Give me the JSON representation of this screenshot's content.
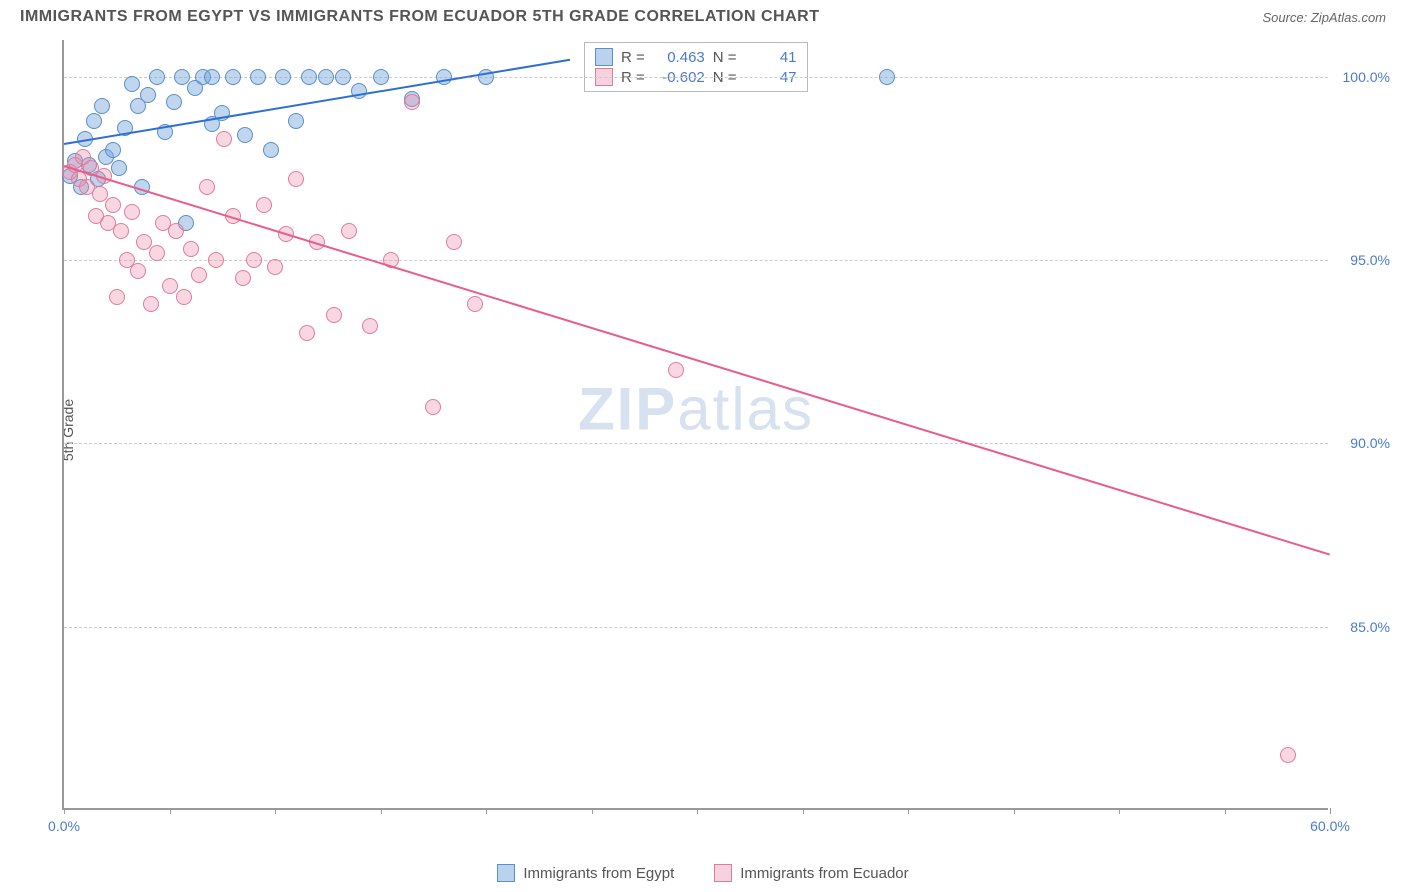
{
  "header": {
    "title": "IMMIGRANTS FROM EGYPT VS IMMIGRANTS FROM ECUADOR 5TH GRADE CORRELATION CHART",
    "source": "Source: ZipAtlas.com"
  },
  "y_axis_label": "5th Grade",
  "watermark_bold": "ZIP",
  "watermark_thin": "atlas",
  "chart": {
    "type": "scatter",
    "xlim": [
      0,
      60
    ],
    "ylim": [
      80,
      101
    ],
    "x_ticks": [
      0,
      5,
      10,
      15,
      20,
      25,
      30,
      35,
      40,
      45,
      50,
      55,
      60
    ],
    "x_tick_labels": {
      "0": "0.0%",
      "60": "60.0%"
    },
    "y_ticks": [
      85,
      90,
      95,
      100
    ],
    "y_tick_labels": [
      "85.0%",
      "90.0%",
      "95.0%",
      "100.0%"
    ],
    "grid_color": "#cccccc",
    "background_color": "#ffffff",
    "axis_color": "#999999",
    "marker_radius": 8,
    "series": [
      {
        "name": "Immigrants from Egypt",
        "color_fill": "rgba(115,165,220,0.45)",
        "color_stroke": "#5a8fc8",
        "trend_color": "#2e6fd6",
        "R": "0.463",
        "N": "41",
        "trend": {
          "x1": 0,
          "y1": 98.2,
          "x2": 24,
          "y2": 100.5
        },
        "points": [
          [
            0.3,
            97.3
          ],
          [
            0.5,
            97.7
          ],
          [
            0.8,
            97.0
          ],
          [
            1.0,
            98.3
          ],
          [
            1.2,
            97.6
          ],
          [
            1.4,
            98.8
          ],
          [
            1.6,
            97.2
          ],
          [
            1.8,
            99.2
          ],
          [
            2.0,
            97.8
          ],
          [
            2.3,
            98.0
          ],
          [
            2.6,
            97.5
          ],
          [
            2.9,
            98.6
          ],
          [
            3.2,
            99.8
          ],
          [
            3.5,
            99.2
          ],
          [
            3.7,
            97.0
          ],
          [
            4.0,
            99.5
          ],
          [
            4.4,
            100.0
          ],
          [
            4.8,
            98.5
          ],
          [
            5.2,
            99.3
          ],
          [
            5.6,
            100.0
          ],
          [
            5.8,
            96.0
          ],
          [
            6.2,
            99.7
          ],
          [
            6.6,
            100.0
          ],
          [
            7.0,
            98.7
          ],
          [
            7.0,
            100.0
          ],
          [
            7.5,
            99.0
          ],
          [
            8.0,
            100.0
          ],
          [
            8.6,
            98.4
          ],
          [
            9.2,
            100.0
          ],
          [
            9.8,
            98.0
          ],
          [
            10.4,
            100.0
          ],
          [
            11.0,
            98.8
          ],
          [
            11.6,
            100.0
          ],
          [
            12.4,
            100.0
          ],
          [
            13.2,
            100.0
          ],
          [
            14.0,
            99.6
          ],
          [
            15.0,
            100.0
          ],
          [
            16.5,
            99.4
          ],
          [
            18.0,
            100.0
          ],
          [
            20.0,
            100.0
          ],
          [
            39.0,
            100.0
          ]
        ]
      },
      {
        "name": "Immigrants from Ecuador",
        "color_fill": "rgba(235,140,170,0.35)",
        "color_stroke": "#e07ba0",
        "trend_color": "#e85d8a",
        "R": "-0.602",
        "N": "47",
        "trend": {
          "x1": 0,
          "y1": 97.6,
          "x2": 60,
          "y2": 87.0
        },
        "points": [
          [
            0.3,
            97.4
          ],
          [
            0.5,
            97.6
          ],
          [
            0.7,
            97.2
          ],
          [
            0.9,
            97.8
          ],
          [
            1.1,
            97.0
          ],
          [
            1.3,
            97.5
          ],
          [
            1.5,
            96.2
          ],
          [
            1.7,
            96.8
          ],
          [
            1.9,
            97.3
          ],
          [
            2.1,
            96.0
          ],
          [
            2.3,
            96.5
          ],
          [
            2.5,
            94.0
          ],
          [
            2.7,
            95.8
          ],
          [
            3.0,
            95.0
          ],
          [
            3.2,
            96.3
          ],
          [
            3.5,
            94.7
          ],
          [
            3.8,
            95.5
          ],
          [
            4.1,
            93.8
          ],
          [
            4.4,
            95.2
          ],
          [
            4.7,
            96.0
          ],
          [
            5.0,
            94.3
          ],
          [
            5.3,
            95.8
          ],
          [
            5.7,
            94.0
          ],
          [
            6.0,
            95.3
          ],
          [
            6.4,
            94.6
          ],
          [
            6.8,
            97.0
          ],
          [
            7.2,
            95.0
          ],
          [
            7.6,
            98.3
          ],
          [
            8.0,
            96.2
          ],
          [
            8.5,
            94.5
          ],
          [
            9.0,
            95.0
          ],
          [
            9.5,
            96.5
          ],
          [
            10.0,
            94.8
          ],
          [
            10.5,
            95.7
          ],
          [
            11.0,
            97.2
          ],
          [
            11.5,
            93.0
          ],
          [
            12.0,
            95.5
          ],
          [
            12.8,
            93.5
          ],
          [
            13.5,
            95.8
          ],
          [
            14.5,
            93.2
          ],
          [
            15.5,
            95.0
          ],
          [
            16.5,
            99.3
          ],
          [
            17.5,
            91.0
          ],
          [
            18.5,
            95.5
          ],
          [
            19.5,
            93.8
          ],
          [
            29.0,
            92.0
          ],
          [
            58.0,
            81.5
          ]
        ]
      }
    ]
  },
  "legend": {
    "egypt": "Immigrants from Egypt",
    "ecuador": "Immigrants from Ecuador"
  },
  "stats_labels": {
    "R": "R =",
    "N": "N ="
  }
}
